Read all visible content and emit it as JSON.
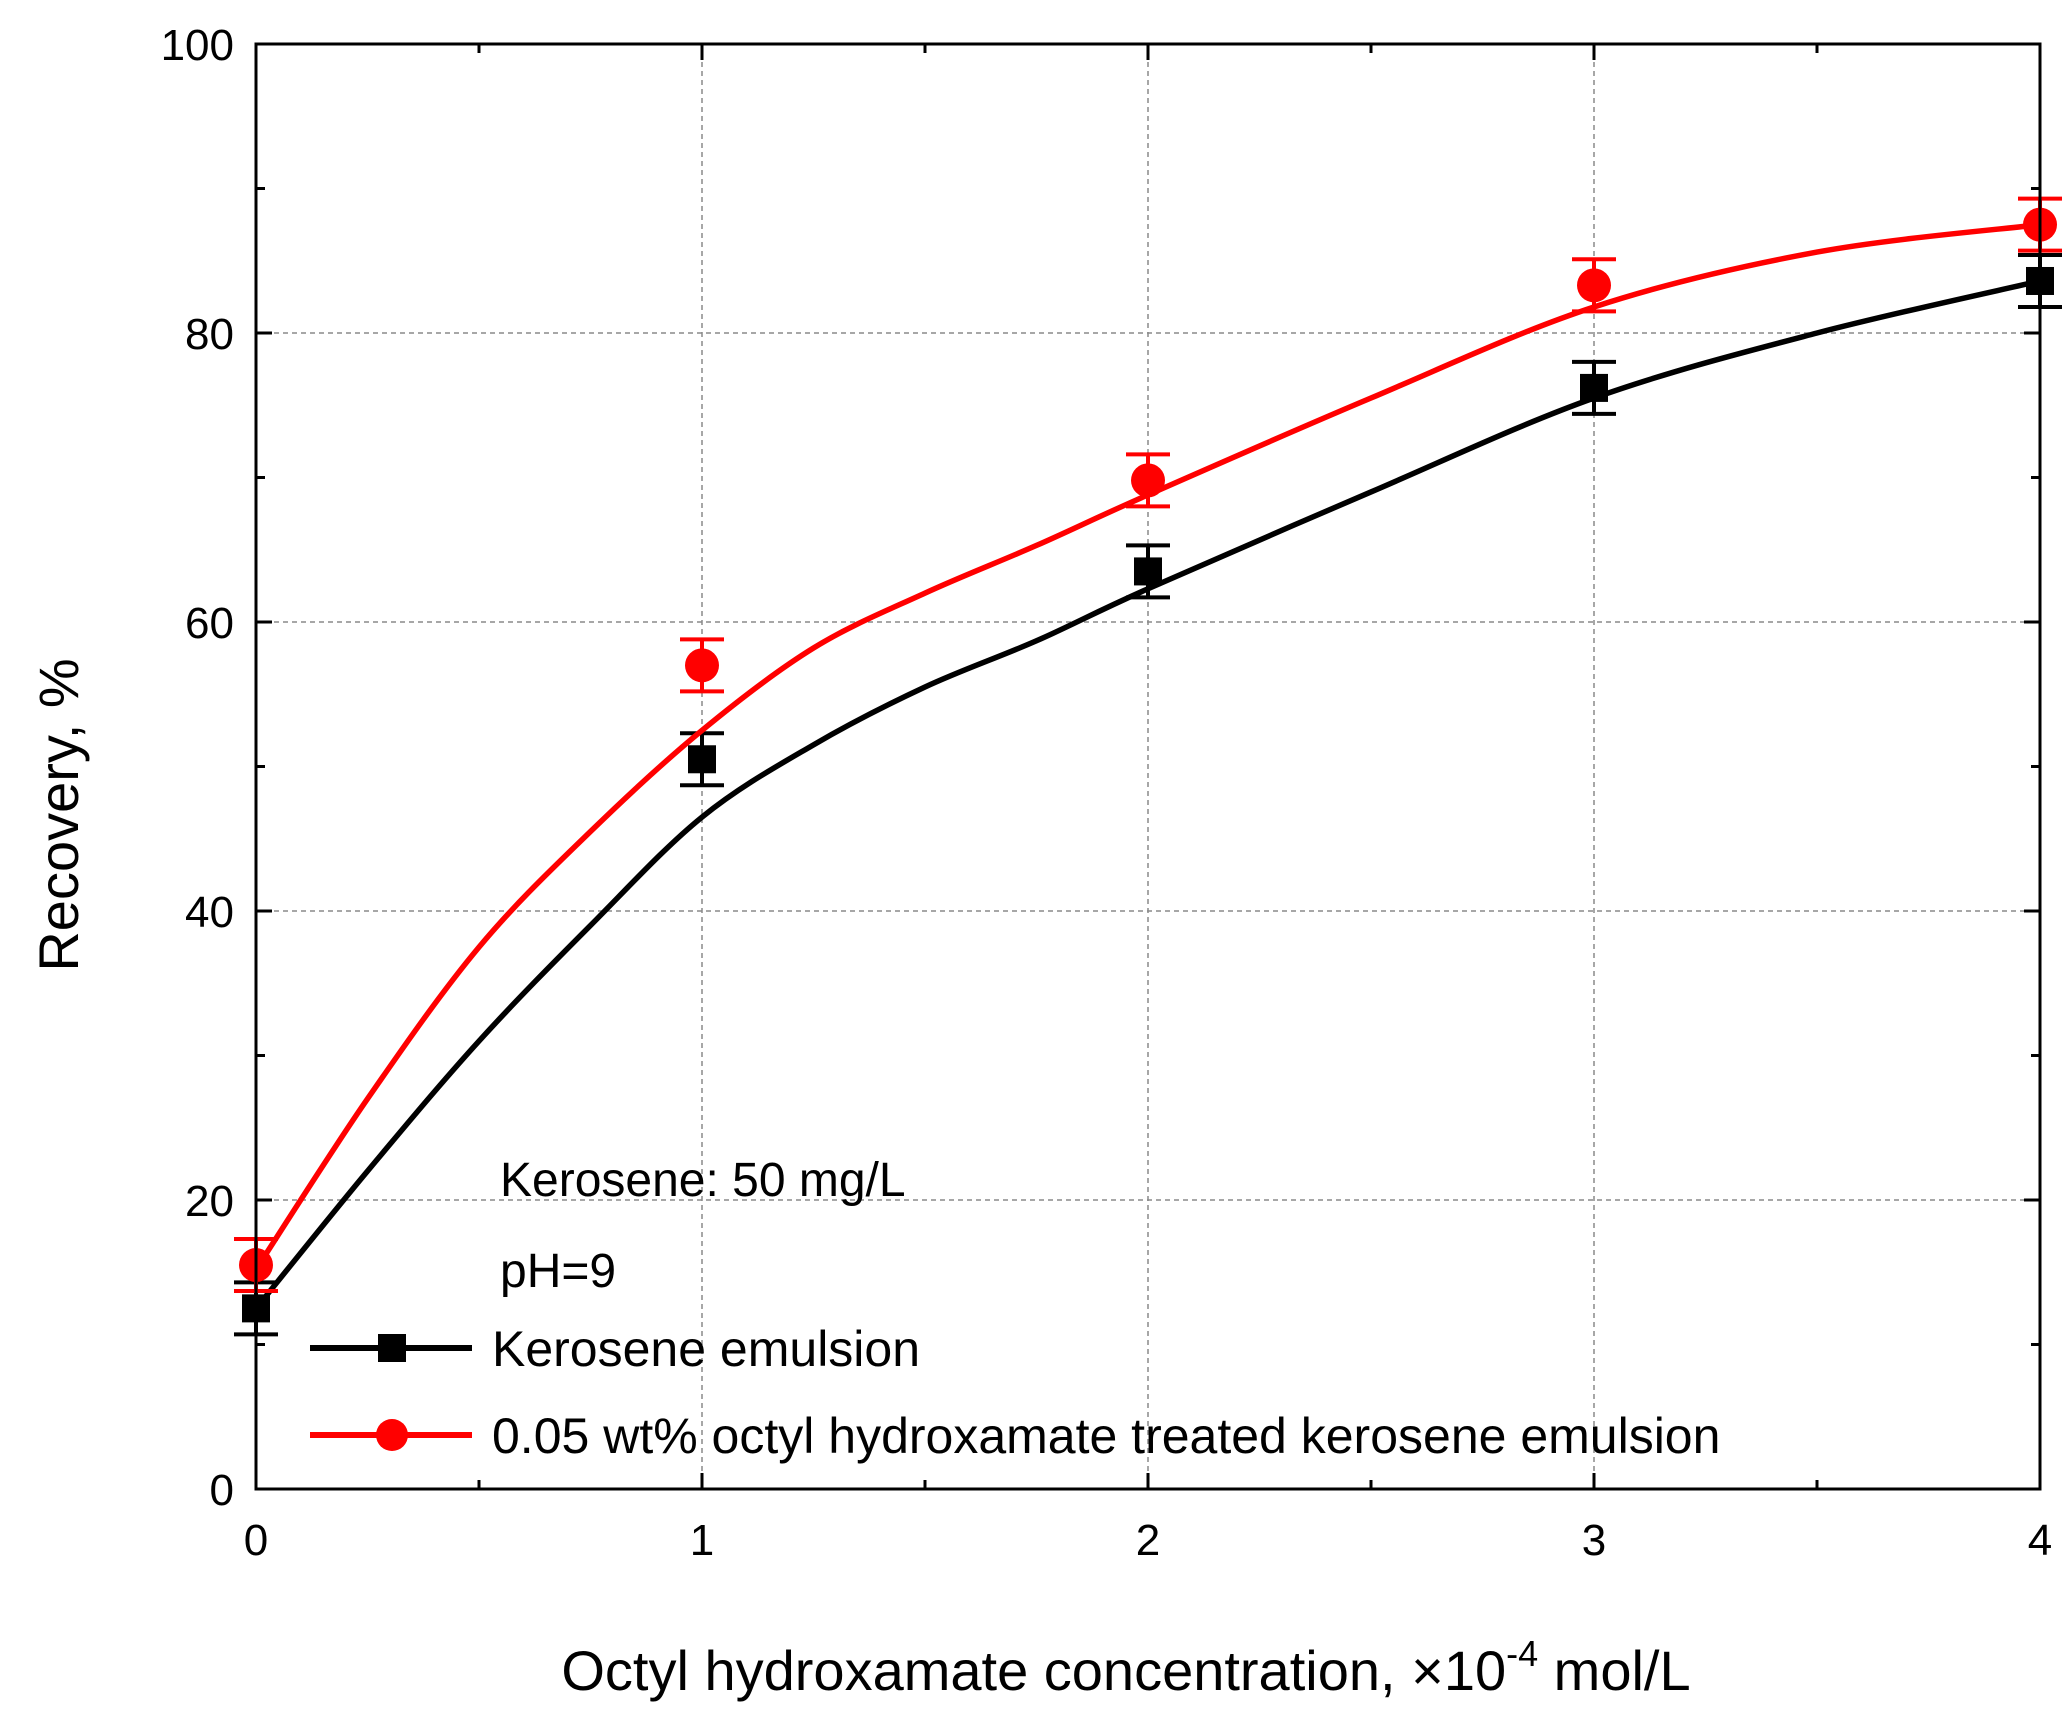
{
  "chart_data": {
    "type": "line",
    "title": "",
    "xlabel_main": "Octyl hydroxamate concentration, ",
    "xlabel_unit_prefix": "×10",
    "xlabel_exponent": "-4",
    "xlabel_unit_suffix": " mol/L",
    "ylabel": "Recovery, %",
    "xlim": [
      0,
      4
    ],
    "ylim": [
      0,
      100
    ],
    "xticks": [
      0,
      1,
      2,
      3,
      4
    ],
    "yticks": [
      0,
      20,
      40,
      60,
      80,
      100
    ],
    "grid": true,
    "legend_position": "bottom-left",
    "annotations": [
      "Kerosene: 50 mg/L",
      "pH=9"
    ],
    "series": [
      {
        "name": "Kerosene emulsion",
        "color": "#000000",
        "marker": "square",
        "x": [
          0,
          1,
          2,
          3,
          4
        ],
        "y": [
          12.5,
          50.5,
          63.5,
          76.2,
          83.6
        ],
        "error": [
          1.8,
          1.8,
          1.8,
          1.8,
          1.8
        ],
        "fit": [
          [
            0,
            12.5
          ],
          [
            0.25,
            22
          ],
          [
            0.5,
            31
          ],
          [
            0.75,
            39
          ],
          [
            1,
            46.5
          ],
          [
            1.25,
            51.5
          ],
          [
            1.5,
            55.5
          ],
          [
            1.75,
            58.7
          ],
          [
            2,
            62.3
          ],
          [
            2.5,
            69
          ],
          [
            3,
            75.5
          ],
          [
            3.5,
            80
          ],
          [
            4,
            83.6
          ]
        ]
      },
      {
        "name": "0.05 wt% octyl hydroxamate treated kerosene emulsion",
        "color": "#ff0000",
        "marker": "circle",
        "x": [
          0,
          1,
          2,
          3,
          4
        ],
        "y": [
          15.5,
          57.0,
          69.8,
          83.3,
          87.5
        ],
        "error": [
          1.8,
          1.8,
          1.8,
          1.8,
          1.8
        ],
        "fit": [
          [
            0,
            15.2
          ],
          [
            0.25,
            27
          ],
          [
            0.5,
            37.5
          ],
          [
            0.75,
            45.5
          ],
          [
            1,
            52.5
          ],
          [
            1.25,
            58.2
          ],
          [
            1.5,
            62
          ],
          [
            1.75,
            65.3
          ],
          [
            2,
            68.8
          ],
          [
            2.5,
            75.5
          ],
          [
            3,
            81.8
          ],
          [
            3.5,
            85.6
          ],
          [
            4,
            87.5
          ]
        ]
      }
    ]
  }
}
